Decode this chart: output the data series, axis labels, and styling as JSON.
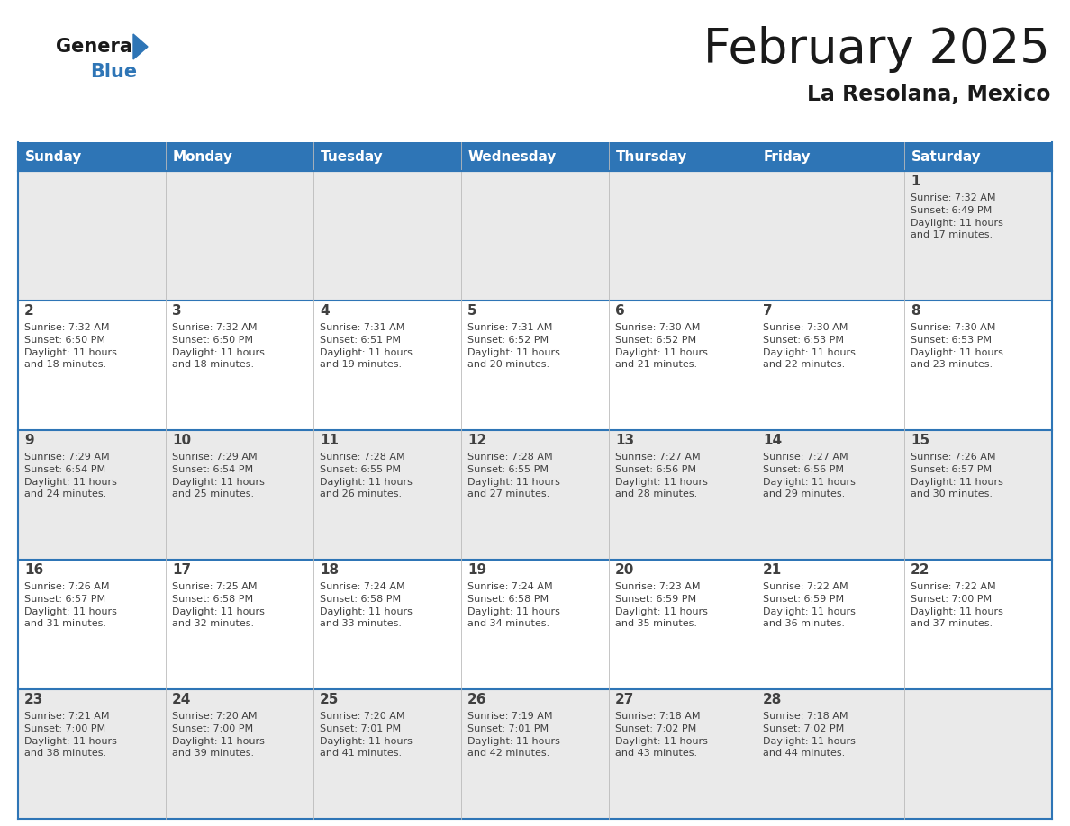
{
  "title": "February 2025",
  "subtitle": "La Resolana, Mexico",
  "header_bg": "#2E75B6",
  "header_text_color": "#FFFFFF",
  "cell_bg_odd": "#EAEAEA",
  "cell_bg_even": "#FFFFFF",
  "day_headers": [
    "Sunday",
    "Monday",
    "Tuesday",
    "Wednesday",
    "Thursday",
    "Friday",
    "Saturday"
  ],
  "text_color": "#404040",
  "line_color": "#2E75B6",
  "border_color": "#2E75B6",
  "calendar": [
    [
      {
        "day": null,
        "sunrise": null,
        "sunset": null,
        "daylight_h": null,
        "daylight_m": null
      },
      {
        "day": null,
        "sunrise": null,
        "sunset": null,
        "daylight_h": null,
        "daylight_m": null
      },
      {
        "day": null,
        "sunrise": null,
        "sunset": null,
        "daylight_h": null,
        "daylight_m": null
      },
      {
        "day": null,
        "sunrise": null,
        "sunset": null,
        "daylight_h": null,
        "daylight_m": null
      },
      {
        "day": null,
        "sunrise": null,
        "sunset": null,
        "daylight_h": null,
        "daylight_m": null
      },
      {
        "day": null,
        "sunrise": null,
        "sunset": null,
        "daylight_h": null,
        "daylight_m": null
      },
      {
        "day": 1,
        "sunrise": "7:32 AM",
        "sunset": "6:49 PM",
        "daylight_h": "11 hours",
        "daylight_m": "17 minutes."
      }
    ],
    [
      {
        "day": 2,
        "sunrise": "7:32 AM",
        "sunset": "6:50 PM",
        "daylight_h": "11 hours",
        "daylight_m": "18 minutes."
      },
      {
        "day": 3,
        "sunrise": "7:32 AM",
        "sunset": "6:50 PM",
        "daylight_h": "11 hours",
        "daylight_m": "18 minutes."
      },
      {
        "day": 4,
        "sunrise": "7:31 AM",
        "sunset": "6:51 PM",
        "daylight_h": "11 hours",
        "daylight_m": "19 minutes."
      },
      {
        "day": 5,
        "sunrise": "7:31 AM",
        "sunset": "6:52 PM",
        "daylight_h": "11 hours",
        "daylight_m": "20 minutes."
      },
      {
        "day": 6,
        "sunrise": "7:30 AM",
        "sunset": "6:52 PM",
        "daylight_h": "11 hours",
        "daylight_m": "21 minutes."
      },
      {
        "day": 7,
        "sunrise": "7:30 AM",
        "sunset": "6:53 PM",
        "daylight_h": "11 hours",
        "daylight_m": "22 minutes."
      },
      {
        "day": 8,
        "sunrise": "7:30 AM",
        "sunset": "6:53 PM",
        "daylight_h": "11 hours",
        "daylight_m": "23 minutes."
      }
    ],
    [
      {
        "day": 9,
        "sunrise": "7:29 AM",
        "sunset": "6:54 PM",
        "daylight_h": "11 hours",
        "daylight_m": "24 minutes."
      },
      {
        "day": 10,
        "sunrise": "7:29 AM",
        "sunset": "6:54 PM",
        "daylight_h": "11 hours",
        "daylight_m": "25 minutes."
      },
      {
        "day": 11,
        "sunrise": "7:28 AM",
        "sunset": "6:55 PM",
        "daylight_h": "11 hours",
        "daylight_m": "26 minutes."
      },
      {
        "day": 12,
        "sunrise": "7:28 AM",
        "sunset": "6:55 PM",
        "daylight_h": "11 hours",
        "daylight_m": "27 minutes."
      },
      {
        "day": 13,
        "sunrise": "7:27 AM",
        "sunset": "6:56 PM",
        "daylight_h": "11 hours",
        "daylight_m": "28 minutes."
      },
      {
        "day": 14,
        "sunrise": "7:27 AM",
        "sunset": "6:56 PM",
        "daylight_h": "11 hours",
        "daylight_m": "29 minutes."
      },
      {
        "day": 15,
        "sunrise": "7:26 AM",
        "sunset": "6:57 PM",
        "daylight_h": "11 hours",
        "daylight_m": "30 minutes."
      }
    ],
    [
      {
        "day": 16,
        "sunrise": "7:26 AM",
        "sunset": "6:57 PM",
        "daylight_h": "11 hours",
        "daylight_m": "31 minutes."
      },
      {
        "day": 17,
        "sunrise": "7:25 AM",
        "sunset": "6:58 PM",
        "daylight_h": "11 hours",
        "daylight_m": "32 minutes."
      },
      {
        "day": 18,
        "sunrise": "7:24 AM",
        "sunset": "6:58 PM",
        "daylight_h": "11 hours",
        "daylight_m": "33 minutes."
      },
      {
        "day": 19,
        "sunrise": "7:24 AM",
        "sunset": "6:58 PM",
        "daylight_h": "11 hours",
        "daylight_m": "34 minutes."
      },
      {
        "day": 20,
        "sunrise": "7:23 AM",
        "sunset": "6:59 PM",
        "daylight_h": "11 hours",
        "daylight_m": "35 minutes."
      },
      {
        "day": 21,
        "sunrise": "7:22 AM",
        "sunset": "6:59 PM",
        "daylight_h": "11 hours",
        "daylight_m": "36 minutes."
      },
      {
        "day": 22,
        "sunrise": "7:22 AM",
        "sunset": "7:00 PM",
        "daylight_h": "11 hours",
        "daylight_m": "37 minutes."
      }
    ],
    [
      {
        "day": 23,
        "sunrise": "7:21 AM",
        "sunset": "7:00 PM",
        "daylight_h": "11 hours",
        "daylight_m": "38 minutes."
      },
      {
        "day": 24,
        "sunrise": "7:20 AM",
        "sunset": "7:00 PM",
        "daylight_h": "11 hours",
        "daylight_m": "39 minutes."
      },
      {
        "day": 25,
        "sunrise": "7:20 AM",
        "sunset": "7:01 PM",
        "daylight_h": "11 hours",
        "daylight_m": "41 minutes."
      },
      {
        "day": 26,
        "sunrise": "7:19 AM",
        "sunset": "7:01 PM",
        "daylight_h": "11 hours",
        "daylight_m": "42 minutes."
      },
      {
        "day": 27,
        "sunrise": "7:18 AM",
        "sunset": "7:02 PM",
        "daylight_h": "11 hours",
        "daylight_m": "43 minutes."
      },
      {
        "day": 28,
        "sunrise": "7:18 AM",
        "sunset": "7:02 PM",
        "daylight_h": "11 hours",
        "daylight_m": "44 minutes."
      },
      {
        "day": null,
        "sunrise": null,
        "sunset": null,
        "daylight_h": null,
        "daylight_m": null
      }
    ]
  ]
}
